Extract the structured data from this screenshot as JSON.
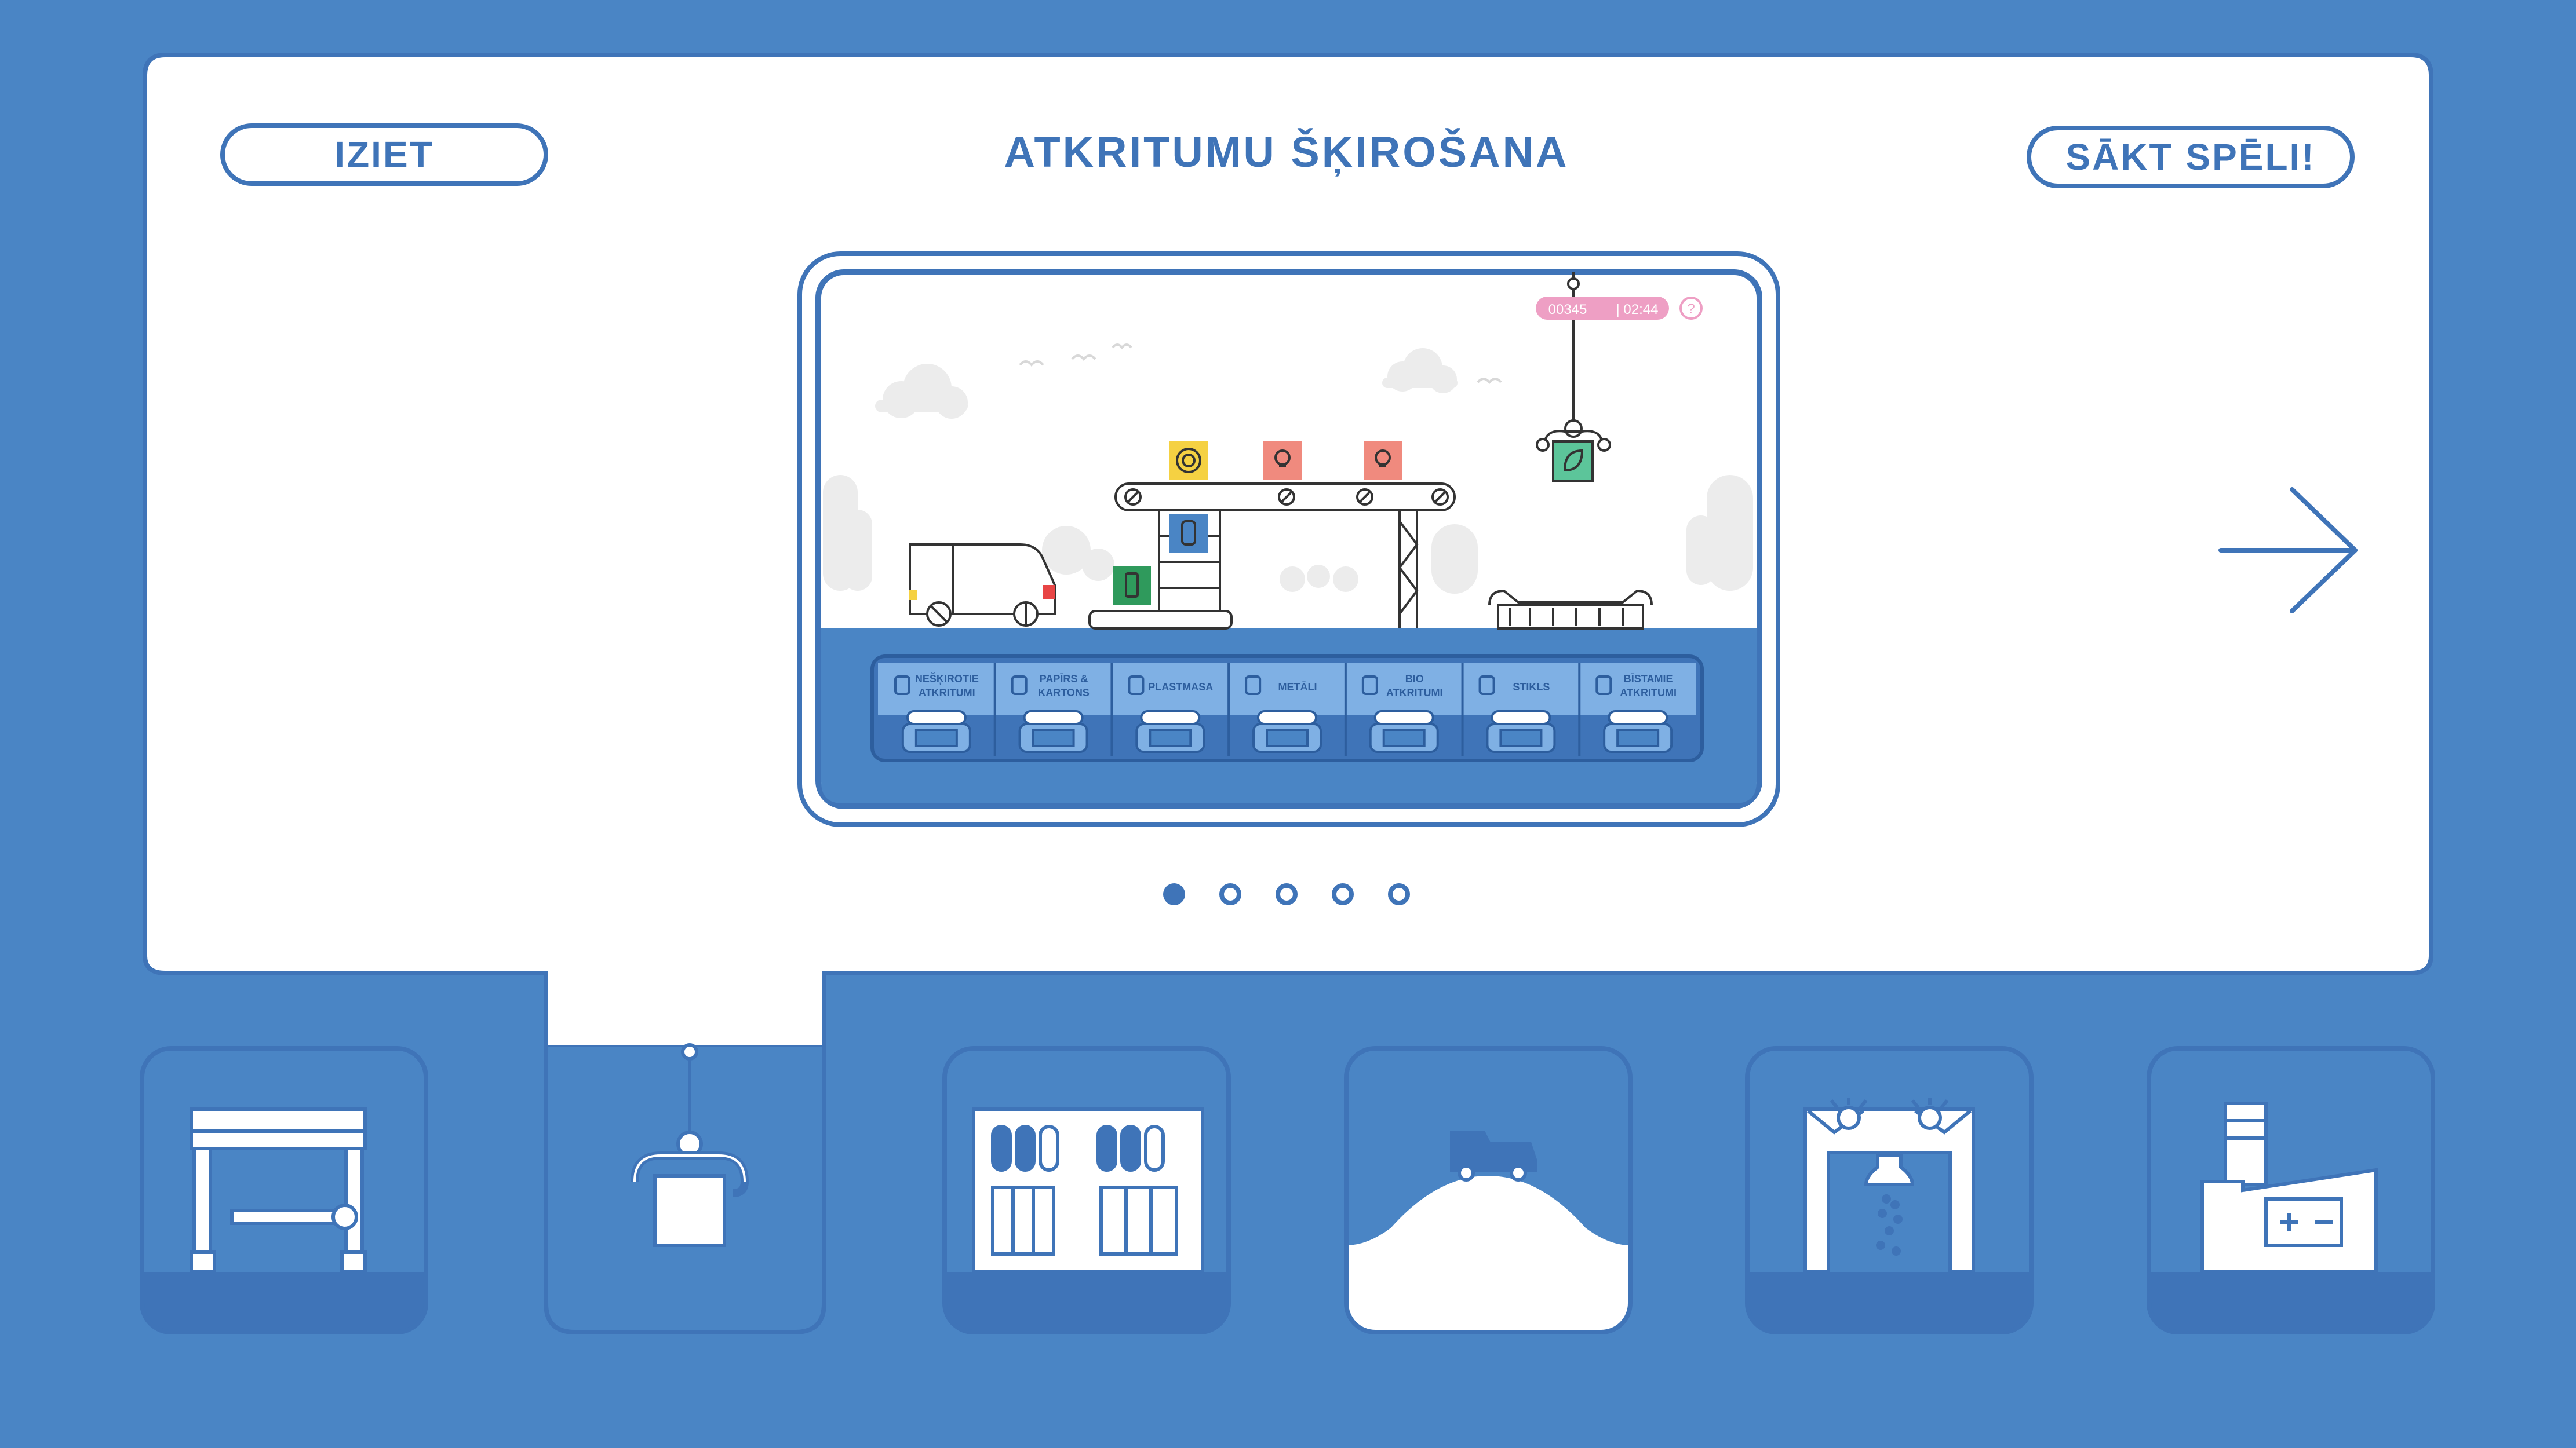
{
  "header": {
    "title": "ATKRITUMU ŠĶIROŠANA",
    "exit_label": "IZIET",
    "start_label": "SĀKT SPĒLI!"
  },
  "preview": {
    "score": "00345",
    "timer": "| 02:44",
    "help_symbol": "?",
    "bins": [
      {
        "icon": "mixed-waste-icon",
        "line1": "NEŠĶIROTIE",
        "line2": "ATKRITUMI"
      },
      {
        "icon": "paper-icon",
        "line1": "PAPĪRS &",
        "line2": "KARTONS"
      },
      {
        "icon": "plastic-bottle-icon",
        "line1": "PLASTMASA",
        "line2": ""
      },
      {
        "icon": "can-icon",
        "line1": "METĀLI",
        "line2": ""
      },
      {
        "icon": "bio-icon",
        "line1": "BIO",
        "line2": "ATKRITUMI"
      },
      {
        "icon": "glass-jar-icon",
        "line1": "STIKLS",
        "line2": ""
      },
      {
        "icon": "hazard-icon",
        "line1": "BĪSTAMIE",
        "line2": "ATKRITUMI"
      }
    ]
  },
  "pagination": {
    "count": 5,
    "active_index": 0
  },
  "tabs": [
    {
      "icon": "weighbridge-gate-icon",
      "selected": false
    },
    {
      "icon": "crane-grabber-icon",
      "selected": true
    },
    {
      "icon": "sorting-bins-icon",
      "selected": false
    },
    {
      "icon": "landfill-truck-icon",
      "selected": false
    },
    {
      "icon": "biogas-plant-icon",
      "selected": false
    },
    {
      "icon": "battery-factory-icon",
      "selected": false
    }
  ],
  "colors": {
    "background": "#4a85c5",
    "accent": "#3f74b8",
    "panel": "#ffffff",
    "box_yellow": "#f5d142",
    "box_red": "#f08a7e",
    "box_blue": "#4a85c5",
    "box_green": "#2f9a5c",
    "box_mint": "#5cc59a",
    "hud_pink": "#ee9fc4"
  }
}
